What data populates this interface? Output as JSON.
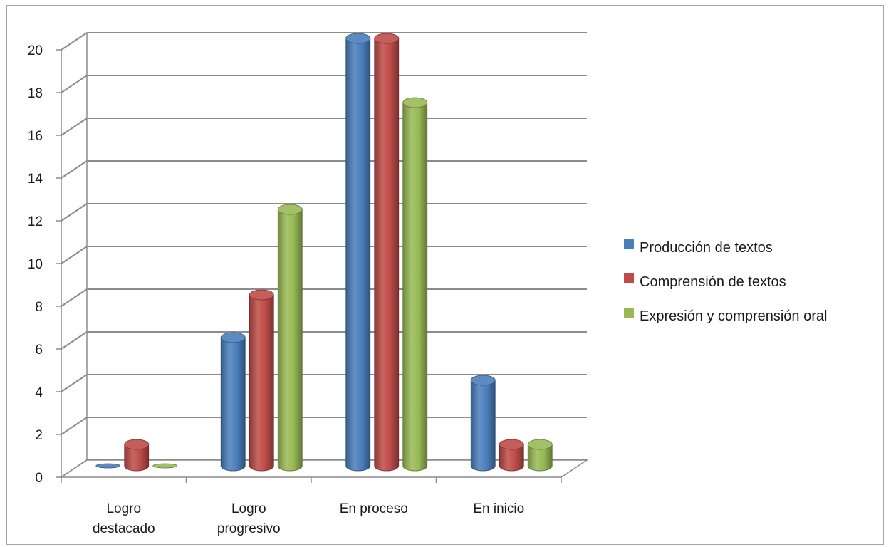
{
  "chart_data": {
    "type": "bar",
    "style": "3d-cylinder",
    "categories": [
      [
        "Logro",
        "destacado"
      ],
      [
        "Logro",
        "progresivo"
      ],
      [
        "En proceso"
      ],
      [
        "En inicio"
      ]
    ],
    "series": [
      {
        "name": "Producción de textos",
        "values": [
          0,
          6,
          20,
          4
        ],
        "color": "#4a7ebb"
      },
      {
        "name": "Comprensión de textos",
        "values": [
          1,
          8,
          20,
          1
        ],
        "color": "#be4b48"
      },
      {
        "name": "Expresión y comprensión oral",
        "values": [
          0,
          12,
          17,
          1
        ],
        "color": "#98b954"
      }
    ],
    "y_ticks": [
      "0",
      "2",
      "4",
      "6",
      "8",
      "10",
      "12",
      "14",
      "16",
      "18",
      "20"
    ],
    "ylim": [
      0,
      20
    ],
    "grid": true,
    "legend_position": "right"
  }
}
